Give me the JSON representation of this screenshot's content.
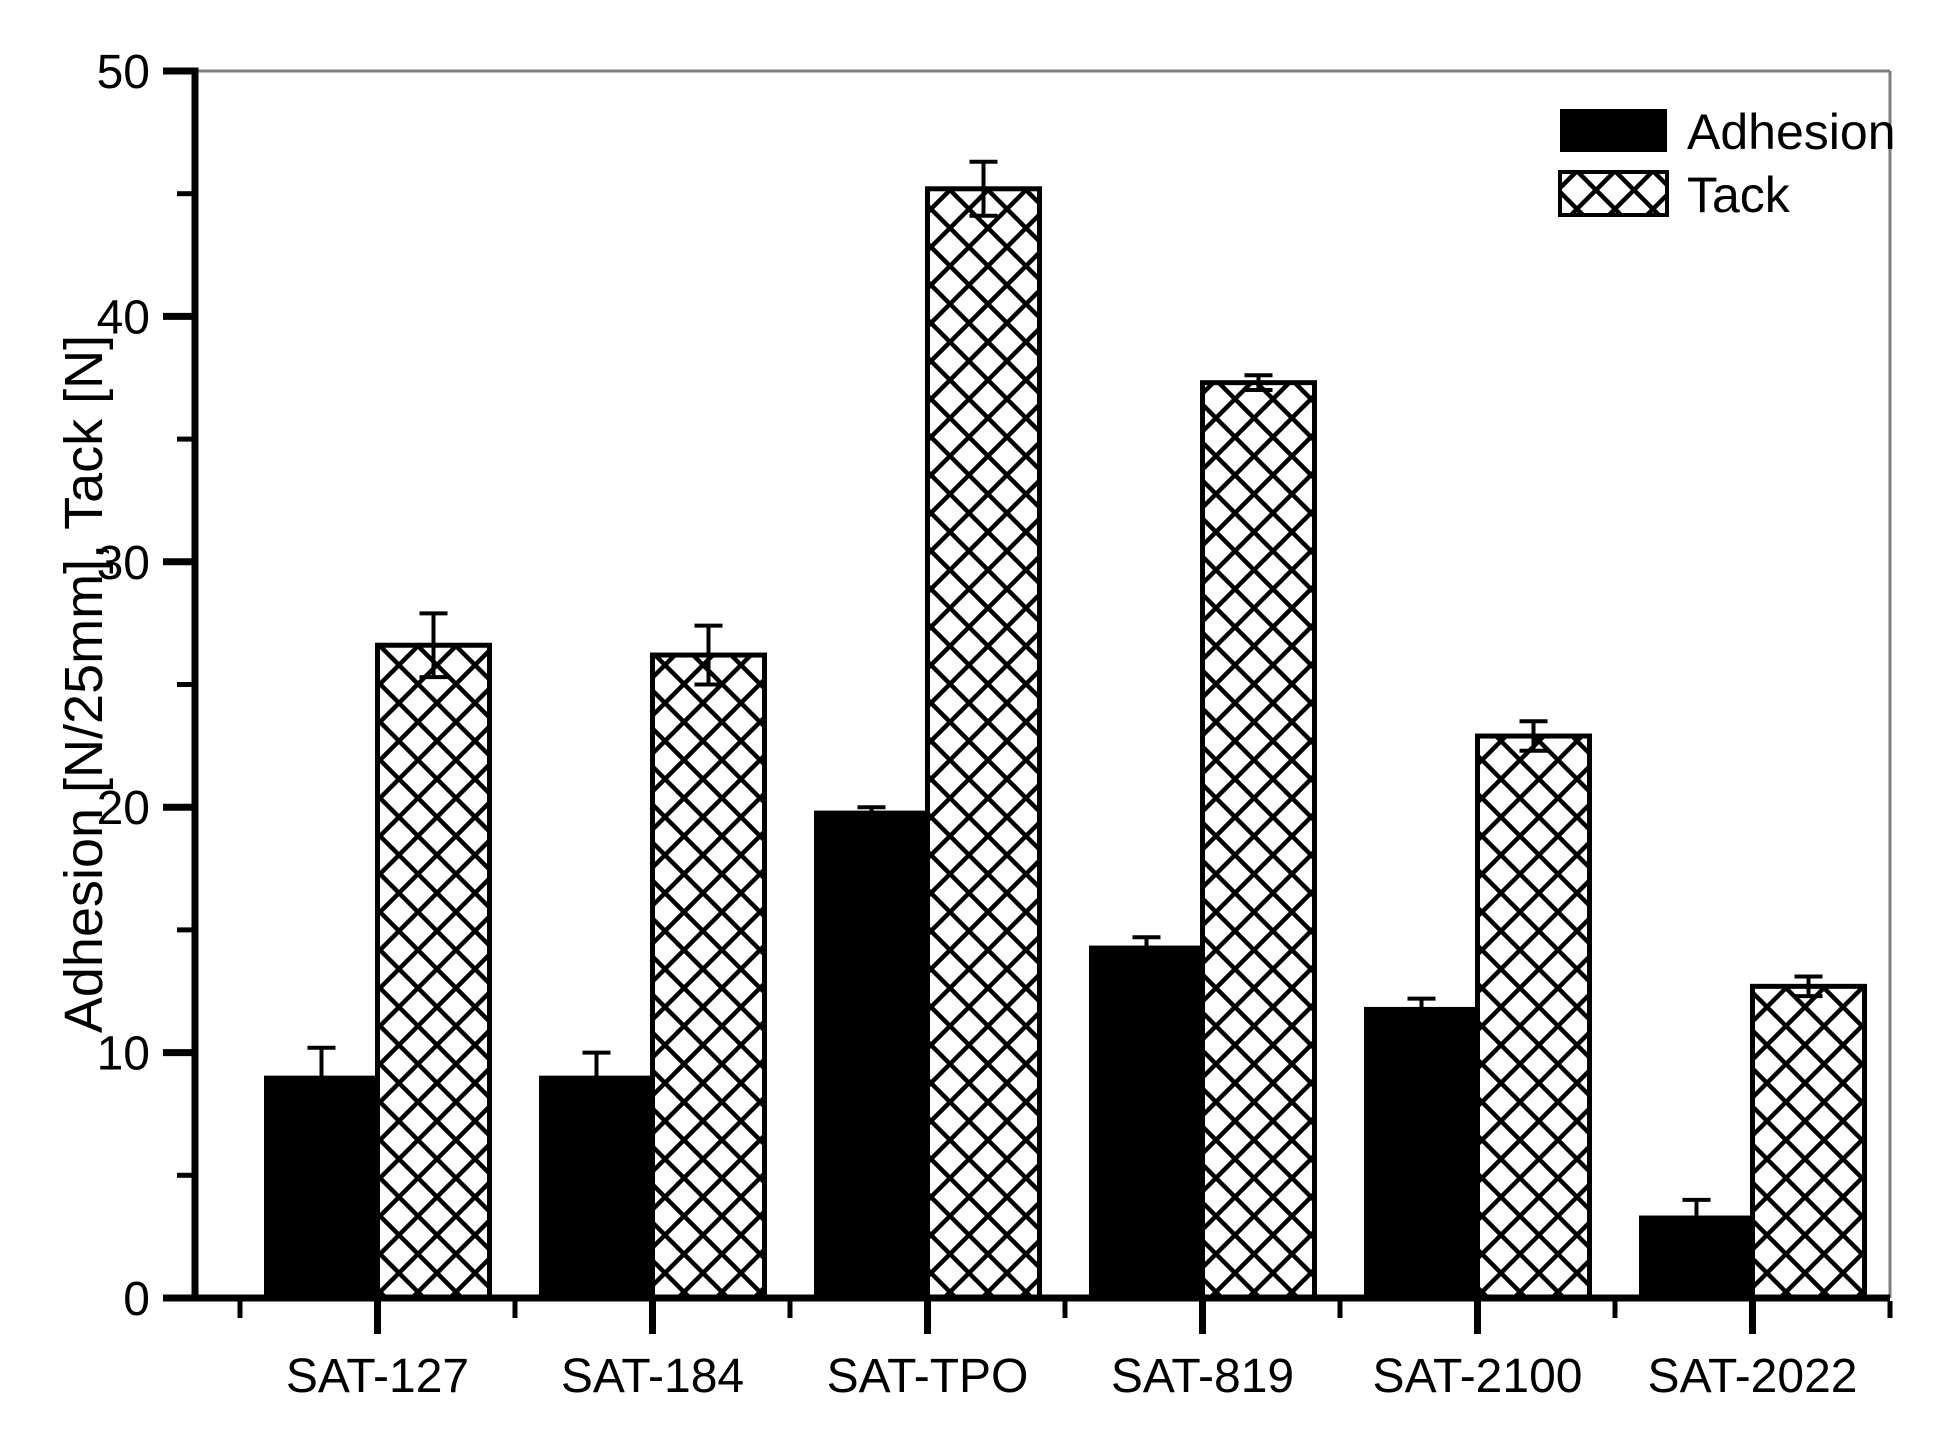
{
  "chart_data": {
    "type": "bar",
    "title": "",
    "xlabel": "",
    "ylabel": "Adhesion [N/25mm], Tack [N]",
    "ylim": [
      0,
      50
    ],
    "y_major_ticks": [
      0,
      10,
      20,
      30,
      40,
      50
    ],
    "y_minor_step": 5,
    "grid": "off",
    "legend_position": "top-right",
    "categories": [
      "SAT-127",
      "SAT-184",
      "SAT-TPO",
      "SAT-819",
      "SAT-2100",
      "SAT-2022"
    ],
    "series": [
      {
        "name": "Adhesion",
        "style": "solid-black",
        "values": [
          9.0,
          9.0,
          19.8,
          14.3,
          11.8,
          3.3
        ],
        "errors": [
          1.2,
          1.0,
          0.2,
          0.4,
          0.4,
          0.7
        ]
      },
      {
        "name": "Tack",
        "style": "crosshatch",
        "values": [
          26.6,
          26.2,
          45.2,
          37.3,
          22.9,
          12.7
        ],
        "errors": [
          1.3,
          1.2,
          1.1,
          0.3,
          0.6,
          0.4
        ]
      }
    ],
    "colors": {
      "bar_fill": "#000000",
      "hatch_line": "#000000",
      "frame_gray": "#7f7f7f",
      "background": "#ffffff"
    }
  }
}
